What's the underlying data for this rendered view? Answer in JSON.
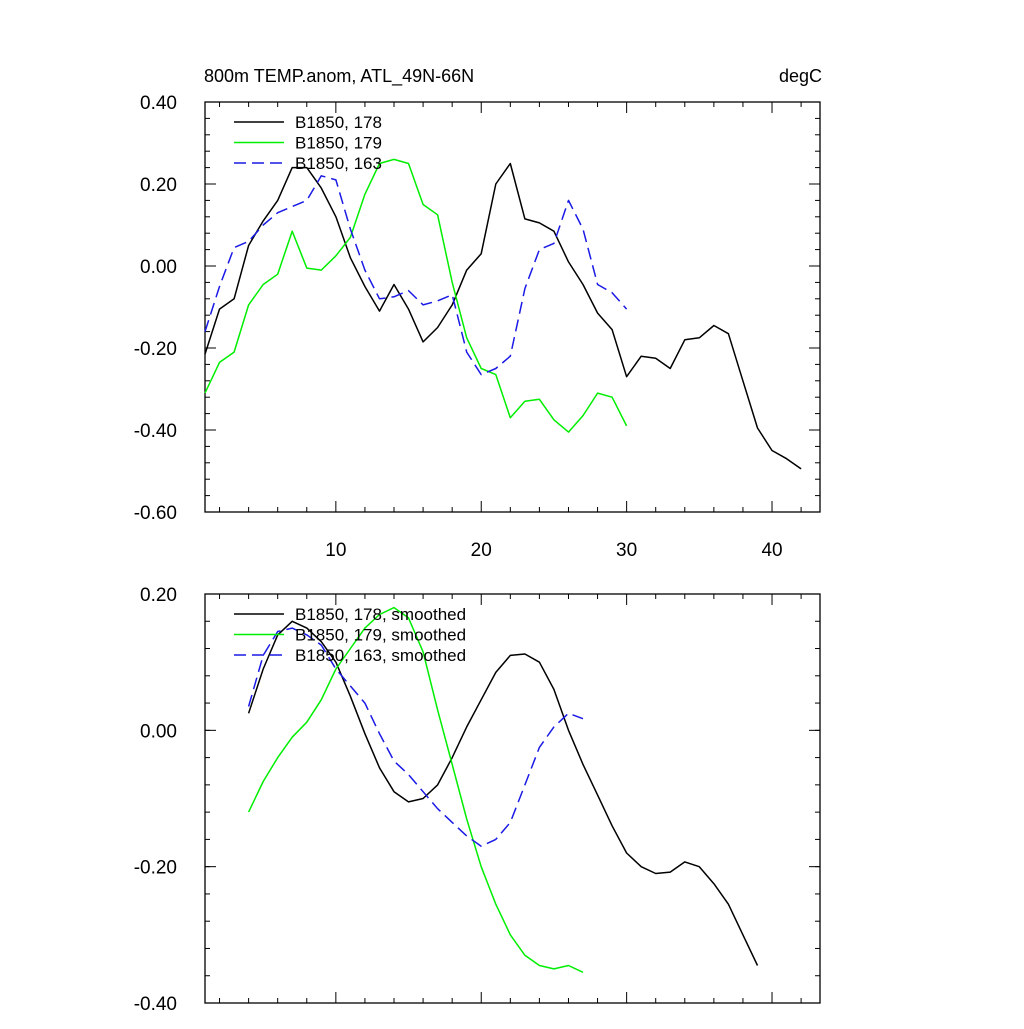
{
  "header": {
    "title": "800m TEMP.anom, ATL_49N-66N",
    "units": "degC"
  },
  "chart_data": [
    {
      "type": "line",
      "title": "800m TEMP.anom, ATL_49N-66N",
      "units": "degC",
      "xlabel": "",
      "ylabel": "",
      "xlim": [
        1,
        43.3
      ],
      "ylim": [
        -0.6,
        0.4
      ],
      "xticks": [
        10,
        20,
        30,
        40
      ],
      "xtick_labels": [
        "10",
        "20",
        "30",
        "40"
      ],
      "yticks": [
        0.4,
        0.2,
        0.0,
        -0.2,
        -0.4,
        -0.6
      ],
      "ytick_labels": [
        "0.40",
        "0.20",
        "0.00",
        "-0.20",
        "-0.40",
        "-0.60"
      ],
      "legend_position": "top-left",
      "series": [
        {
          "name": "B1850, 178",
          "color": "#000000",
          "dash": "solid",
          "x": [
            1,
            2,
            3,
            4,
            5,
            6,
            7,
            8,
            9,
            10,
            11,
            12,
            13,
            14,
            15,
            16,
            17,
            18,
            19,
            20,
            21,
            22,
            23,
            24,
            25,
            26,
            27,
            28,
            29,
            30,
            31,
            32,
            33,
            34,
            35,
            36,
            37,
            38,
            39,
            40,
            41,
            42
          ],
          "values": [
            -0.215,
            -0.105,
            -0.08,
            0.05,
            0.11,
            0.16,
            0.24,
            0.24,
            0.19,
            0.12,
            0.02,
            -0.05,
            -0.11,
            -0.045,
            -0.105,
            -0.185,
            -0.15,
            -0.095,
            -0.01,
            0.03,
            0.2,
            0.25,
            0.115,
            0.105,
            0.085,
            0.01,
            -0.045,
            -0.115,
            -0.155,
            -0.27,
            -0.22,
            -0.225,
            -0.25,
            -0.18,
            -0.175,
            -0.145,
            -0.165,
            -0.28,
            -0.395,
            -0.45,
            -0.47,
            -0.495
          ]
        },
        {
          "name": "B1850, 179",
          "color": "#00ee00",
          "dash": "solid",
          "x": [
            1,
            2,
            3,
            4,
            5,
            6,
            7,
            8,
            9,
            10,
            11,
            12,
            13,
            14,
            15,
            16,
            17,
            18,
            19,
            20,
            21,
            22,
            23,
            24,
            25,
            26,
            27,
            28,
            29,
            30
          ],
          "values": [
            -0.31,
            -0.235,
            -0.21,
            -0.095,
            -0.045,
            -0.02,
            0.085,
            -0.005,
            -0.01,
            0.025,
            0.07,
            0.175,
            0.25,
            0.26,
            0.25,
            0.15,
            0.125,
            -0.04,
            -0.175,
            -0.25,
            -0.265,
            -0.37,
            -0.33,
            -0.325,
            -0.375,
            -0.405,
            -0.365,
            -0.31,
            -0.32,
            -0.39
          ]
        },
        {
          "name": "B1850, 163",
          "color": "#1a1ae6",
          "dash": "dashed",
          "x": [
            1,
            2,
            3,
            4,
            5,
            6,
            7,
            8,
            9,
            10,
            11,
            12,
            13,
            14,
            15,
            16,
            17,
            18,
            19,
            20,
            21,
            22,
            23,
            24,
            25,
            26,
            27,
            28,
            29,
            30
          ],
          "values": [
            -0.16,
            -0.05,
            0.045,
            0.06,
            0.1,
            0.13,
            0.145,
            0.16,
            0.22,
            0.21,
            0.09,
            -0.01,
            -0.08,
            -0.075,
            -0.06,
            -0.095,
            -0.085,
            -0.07,
            -0.21,
            -0.265,
            -0.25,
            -0.22,
            -0.055,
            0.04,
            0.055,
            0.16,
            0.09,
            -0.045,
            -0.065,
            -0.105
          ]
        }
      ]
    },
    {
      "type": "line",
      "title": "",
      "xlabel": "",
      "ylabel": "",
      "xlim": [
        1,
        43.3
      ],
      "ylim": [
        -0.4,
        0.2
      ],
      "xticks": [
        10,
        20,
        30,
        40
      ],
      "yticks": [
        0.2,
        0.0,
        -0.2,
        -0.4
      ],
      "ytick_labels": [
        "0.20",
        "0.00",
        "-0.20",
        "-0.40"
      ],
      "legend_position": "top-left",
      "series": [
        {
          "name": "B1850, 178, smoothed",
          "color": "#000000",
          "dash": "solid",
          "x": [
            4,
            5,
            6,
            7,
            8,
            9,
            10,
            11,
            12,
            13,
            14,
            15,
            16,
            17,
            18,
            19,
            20,
            21,
            22,
            23,
            24,
            25,
            26,
            27,
            28,
            29,
            30,
            31,
            32,
            33,
            34,
            35,
            36,
            37,
            38,
            39
          ],
          "values": [
            0.025,
            0.09,
            0.14,
            0.16,
            0.15,
            0.13,
            0.1,
            0.05,
            -0.005,
            -0.055,
            -0.09,
            -0.105,
            -0.1,
            -0.08,
            -0.04,
            0.005,
            0.045,
            0.085,
            0.11,
            0.112,
            0.1,
            0.06,
            0.0,
            -0.05,
            -0.095,
            -0.14,
            -0.18,
            -0.2,
            -0.21,
            -0.208,
            -0.193,
            -0.2,
            -0.225,
            -0.255,
            -0.3,
            -0.345
          ]
        },
        {
          "name": "B1850, 179, smoothed",
          "color": "#00ee00",
          "dash": "solid",
          "x": [
            4,
            5,
            6,
            7,
            8,
            9,
            10,
            11,
            12,
            13,
            14,
            15,
            16,
            17,
            18,
            19,
            20,
            21,
            22,
            23,
            24,
            25,
            26,
            27
          ],
          "values": [
            -0.12,
            -0.075,
            -0.04,
            -0.01,
            0.012,
            0.045,
            0.09,
            0.12,
            0.15,
            0.17,
            0.18,
            0.165,
            0.115,
            0.03,
            -0.05,
            -0.13,
            -0.2,
            -0.255,
            -0.3,
            -0.33,
            -0.345,
            -0.35,
            -0.345,
            -0.355
          ]
        },
        {
          "name": "B1850, 163, smoothed",
          "color": "#1a1ae6",
          "dash": "dashed",
          "x": [
            4,
            5,
            6,
            7,
            8,
            9,
            10,
            11,
            12,
            13,
            14,
            15,
            16,
            17,
            18,
            19,
            20,
            21,
            22,
            23,
            24,
            25,
            26,
            27
          ],
          "values": [
            0.035,
            0.11,
            0.145,
            0.15,
            0.14,
            0.125,
            0.09,
            0.065,
            0.04,
            -0.005,
            -0.045,
            -0.065,
            -0.09,
            -0.115,
            -0.135,
            -0.155,
            -0.17,
            -0.16,
            -0.135,
            -0.08,
            -0.025,
            0.005,
            0.025,
            0.017
          ]
        }
      ]
    }
  ]
}
